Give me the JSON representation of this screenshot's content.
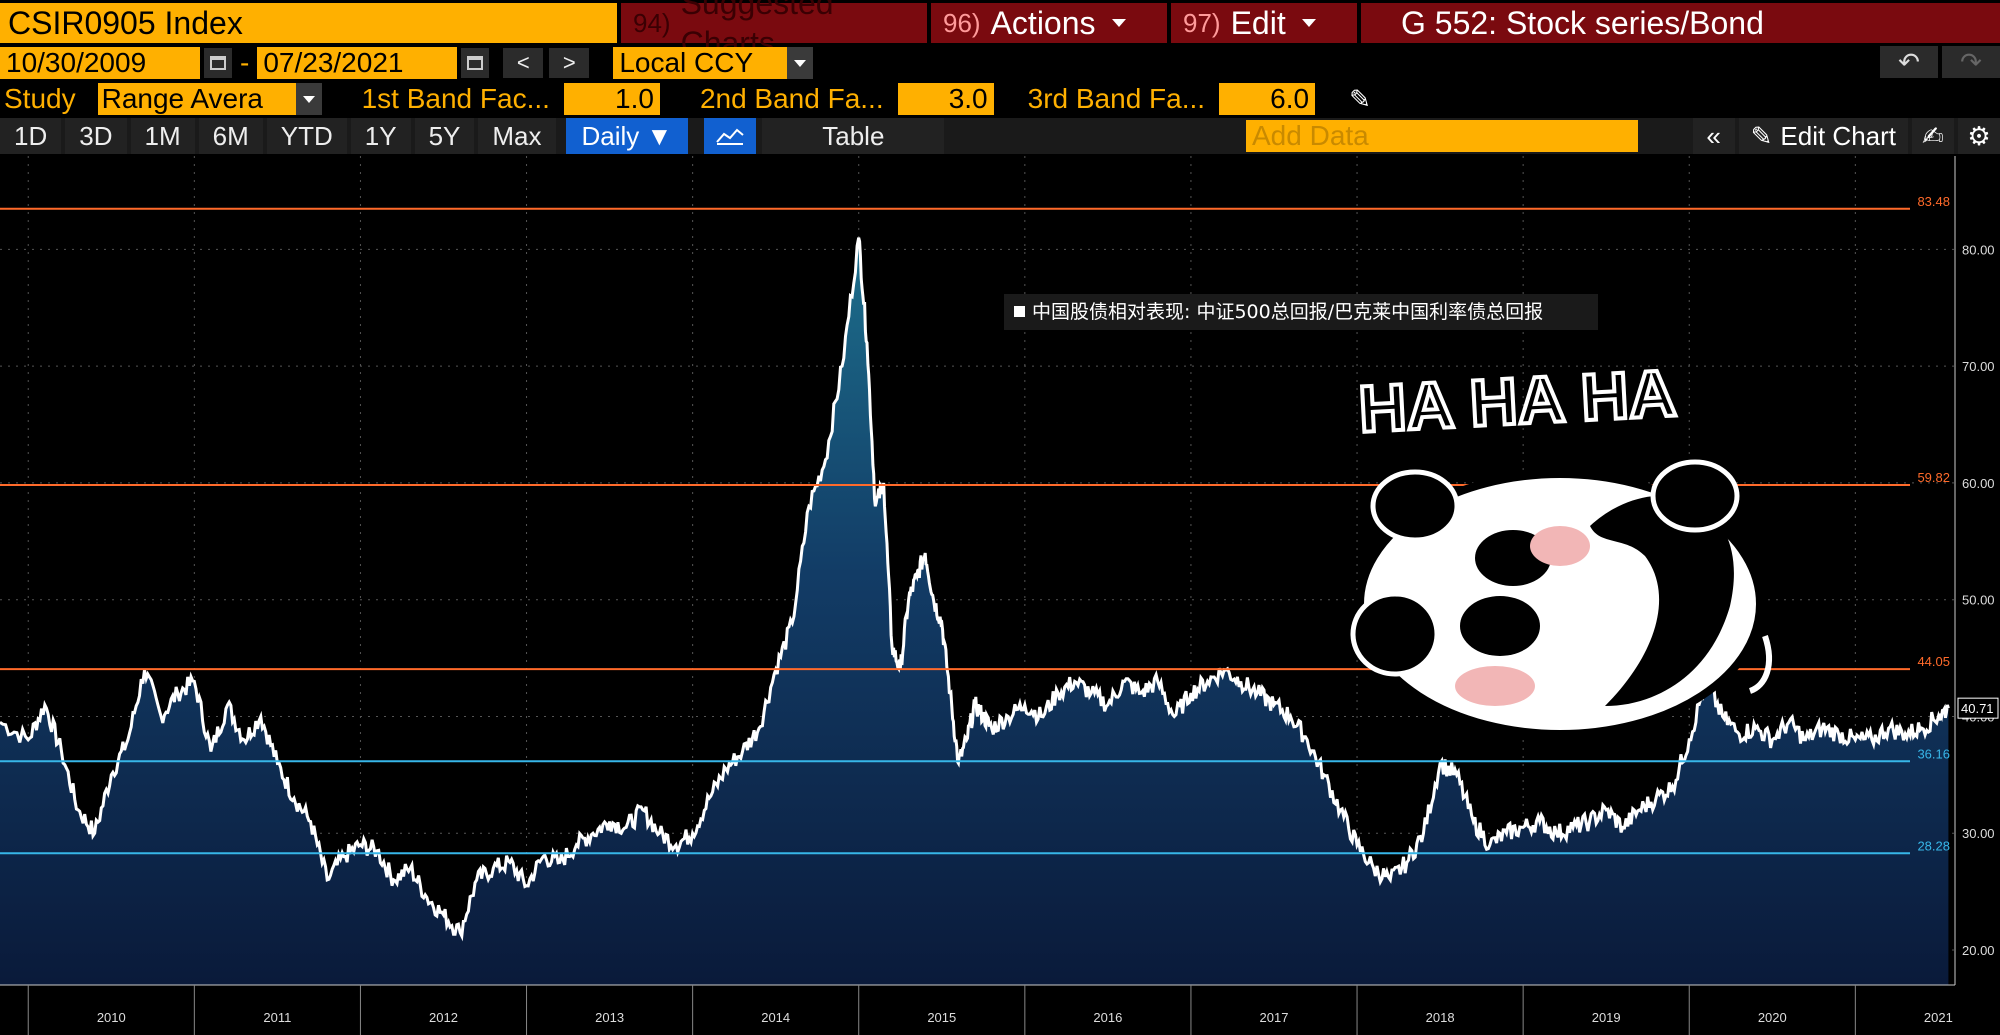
{
  "header": {
    "ticker": "CSIR0905 Index",
    "suggested": {
      "num": "94)",
      "label": "Suggested Charts"
    },
    "actions": {
      "num": "96)",
      "label": "Actions"
    },
    "edit": {
      "num": "97)",
      "label": "Edit"
    },
    "function": "G 552: Stock series/Bond"
  },
  "dates": {
    "start": "10/30/2009",
    "sep": "-",
    "end": "07/23/2021",
    "prev": "<",
    "next": ">"
  },
  "currency": "Local CCY",
  "study": {
    "label": "Study",
    "selected": "Range Avera",
    "band1_label": "1st Band Fac...",
    "band1_value": "1.0",
    "band2_label": "2nd Band Fa...",
    "band2_value": "3.0",
    "band3_label": "3rd Band Fa...",
    "band3_value": "6.0"
  },
  "toolbar": {
    "timeframes": [
      "1D",
      "3D",
      "1M",
      "6M",
      "YTD",
      "1Y",
      "5Y",
      "Max"
    ],
    "frequency": "Daily",
    "table_label": "Table",
    "add_data_placeholder": "Add Data",
    "edit_chart_label": "Edit Chart"
  },
  "colors": {
    "accent": "#ffb000",
    "header_red": "#7a0a0f",
    "active_blue": "#1160d0",
    "band_orange": "#ff6a2a",
    "band_cyan": "#37b6e8"
  },
  "overlay": {
    "text": "HA HA HA",
    "sticker": "panda-sticker"
  },
  "chart_data": {
    "type": "area",
    "legend": "中国股债相对表现: 中证500总回报/巴克莱中国利率债总回报",
    "ylim": [
      17,
      88
    ],
    "yticks": [
      "20.00",
      "30.00",
      "40.00",
      "50.00",
      "60.00",
      "70.00",
      "80.00"
    ],
    "xticks": [
      "2010",
      "2011",
      "2012",
      "2013",
      "2014",
      "2015",
      "2016",
      "2017",
      "2018",
      "2019",
      "2020",
      "2021"
    ],
    "last_value": "40.71",
    "bands": [
      {
        "label": "83.48",
        "value": 83.48,
        "color": "#ff6a2a"
      },
      {
        "label": "59.82",
        "value": 59.82,
        "color": "#ff6a2a"
      },
      {
        "label": "44.05",
        "value": 44.05,
        "color": "#ff6a2a"
      },
      {
        "label": "36.16",
        "value": 36.16,
        "color": "#37b6e8"
      },
      {
        "label": "28.28",
        "value": 28.28,
        "color": "#37b6e8"
      }
    ],
    "series": [
      {
        "x": [
          2009.83,
          2010.0,
          2010.1,
          2010.2,
          2010.3,
          2010.4,
          2010.5,
          2010.6,
          2010.7,
          2010.8,
          2010.9,
          2011.0,
          2011.1,
          2011.2,
          2011.3,
          2011.4,
          2011.5,
          2011.6,
          2011.7,
          2011.8,
          2011.9,
          2012.0,
          2012.1,
          2012.2,
          2012.3,
          2012.4,
          2012.5,
          2012.6,
          2012.7,
          2012.8,
          2012.9,
          2013.0,
          2013.1,
          2013.2,
          2013.3,
          2013.4,
          2013.5,
          2013.6,
          2013.7,
          2013.8,
          2013.9,
          2014.0,
          2014.1,
          2014.2,
          2014.3,
          2014.4,
          2014.5,
          2014.6,
          2014.7,
          2014.8,
          2014.9,
          2015.0,
          2015.05,
          2015.1,
          2015.15,
          2015.2,
          2015.25,
          2015.3,
          2015.35,
          2015.4,
          2015.45,
          2015.5,
          2015.55,
          2015.6,
          2015.65,
          2015.7,
          2015.75,
          2015.8,
          2015.9,
          2016.0,
          2016.1,
          2016.2,
          2016.3,
          2016.4,
          2016.5,
          2016.6,
          2016.7,
          2016.8,
          2016.9,
          2017.0,
          2017.1,
          2017.2,
          2017.3,
          2017.4,
          2017.5,
          2017.6,
          2017.7,
          2017.8,
          2017.9,
          2018.0,
          2018.1,
          2018.2,
          2018.3,
          2018.4,
          2018.5,
          2018.6,
          2018.7,
          2018.8,
          2018.9,
          2019.0,
          2019.1,
          2019.2,
          2019.3,
          2019.4,
          2019.5,
          2019.6,
          2019.7,
          2019.8,
          2019.9,
          2020.0,
          2020.1,
          2020.2,
          2020.3,
          2020.4,
          2020.5,
          2020.6,
          2020.7,
          2020.8,
          2020.9,
          2021.0,
          2021.1,
          2021.2,
          2021.3,
          2021.4,
          2021.5,
          2021.56
        ],
        "y": [
          39.5,
          38.0,
          41.0,
          37.0,
          32.0,
          30.0,
          35.0,
          38.0,
          44.0,
          40.0,
          42.0,
          43.0,
          37.0,
          41.0,
          38.0,
          40.0,
          36.0,
          33.0,
          31.0,
          26.0,
          28.0,
          29.0,
          28.5,
          26.0,
          27.0,
          24.5,
          23.0,
          21.5,
          26.0,
          27.0,
          27.5,
          25.5,
          28.0,
          27.5,
          29.0,
          30.0,
          31.0,
          30.5,
          32.0,
          30.0,
          29.0,
          30.0,
          33.0,
          35.5,
          37.0,
          39.0,
          44.0,
          48.0,
          58.0,
          62.0,
          70.0,
          81.0,
          72.0,
          58.0,
          60.0,
          46.0,
          44.0,
          50.0,
          52.0,
          54.0,
          50.0,
          48.0,
          42.0,
          36.0,
          38.0,
          41.0,
          40.0,
          39.0,
          40.0,
          41.0,
          40.0,
          42.0,
          43.0,
          42.0,
          41.0,
          43.0,
          42.0,
          43.0,
          40.0,
          42.0,
          43.0,
          44.0,
          43.0,
          42.0,
          41.0,
          40.0,
          38.0,
          35.0,
          32.0,
          29.0,
          27.0,
          26.0,
          27.5,
          30.0,
          36.0,
          35.0,
          31.0,
          29.0,
          30.0,
          30.5,
          31.0,
          30.0,
          30.5,
          31.0,
          32.0,
          30.5,
          32.0,
          33.0,
          34.0,
          38.0,
          43.0,
          40.0,
          38.5,
          39.0,
          38.0,
          39.5,
          38.0,
          39.0,
          38.5,
          38.0,
          38.0,
          39.0,
          38.5,
          39.0,
          40.0,
          40.71
        ]
      }
    ]
  }
}
